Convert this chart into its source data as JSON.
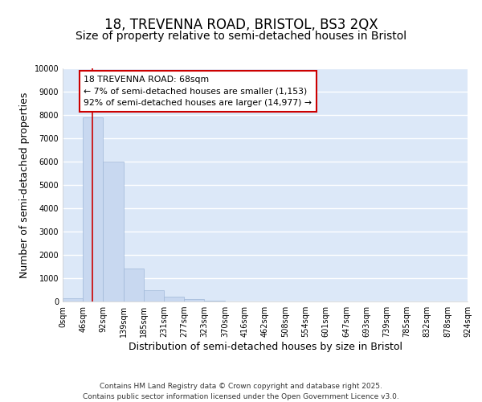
{
  "title": "18, TREVENNA ROAD, BRISTOL, BS3 2QX",
  "subtitle": "Size of property relative to semi-detached houses in Bristol",
  "xlabel": "Distribution of semi-detached houses by size in Bristol",
  "ylabel": "Number of semi-detached properties",
  "bin_edges": [
    0,
    46,
    92,
    139,
    185,
    231,
    277,
    323,
    370,
    416,
    462,
    508,
    554,
    601,
    647,
    693,
    739,
    785,
    832,
    878,
    924
  ],
  "bar_heights": [
    150,
    7900,
    6000,
    1400,
    500,
    200,
    100,
    50,
    5,
    3,
    2,
    1,
    1,
    0,
    0,
    0,
    0,
    0,
    0,
    0
  ],
  "bar_color": "#c8d8f0",
  "bar_edgecolor": "#a0b8d8",
  "red_line_x": 68,
  "annotation_title": "18 TREVENNA ROAD: 68sqm",
  "annotation_line1": "← 7% of semi-detached houses are smaller (1,153)",
  "annotation_line2": "92% of semi-detached houses are larger (14,977) →",
  "annotation_box_facecolor": "#ffffff",
  "annotation_box_edgecolor": "#cc0000",
  "red_line_color": "#cc0000",
  "ylim": [
    0,
    10000
  ],
  "yticks": [
    0,
    1000,
    2000,
    3000,
    4000,
    5000,
    6000,
    7000,
    8000,
    9000,
    10000
  ],
  "footer_line1": "Contains HM Land Registry data © Crown copyright and database right 2025.",
  "footer_line2": "Contains public sector information licensed under the Open Government Licence v3.0.",
  "background_color": "#ffffff",
  "plot_background": "#dce8f8",
  "grid_color": "#ffffff",
  "title_fontsize": 12,
  "subtitle_fontsize": 10,
  "tick_label_fontsize": 7,
  "axis_label_fontsize": 9,
  "footer_fontsize": 6.5
}
